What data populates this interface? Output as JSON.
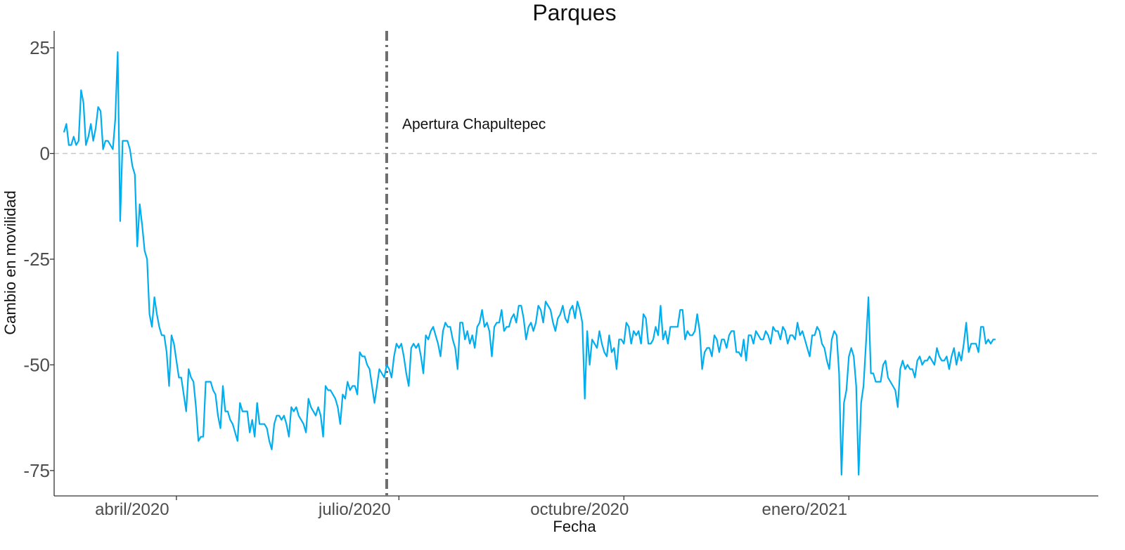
{
  "chart_data": {
    "type": "line",
    "title": "Parques",
    "xlabel": "Fecha",
    "ylabel": "Cambio en movilidad",
    "x_range": [
      "2020-02-11",
      "2021-04-13"
    ],
    "ylim": [
      -81,
      29
    ],
    "y_ticks": [
      25,
      0,
      -25,
      -50,
      -75
    ],
    "y_tick_labels": [
      "25",
      "0",
      "-25",
      "-50",
      "-75"
    ],
    "x_ticks": [
      {
        "date": "2020-04-01",
        "label": "abril/2020"
      },
      {
        "date": "2020-07-01",
        "label": "julio/2020"
      },
      {
        "date": "2020-10-01",
        "label": "octubre/2020"
      },
      {
        "date": "2021-01-01",
        "label": "enero/2021"
      }
    ],
    "grid": false,
    "reference_line": {
      "y": 0,
      "style": "dashed",
      "color": "#c8c8c8"
    },
    "event": {
      "date": "2020-06-26",
      "label": "Apertura Chapultepec",
      "style": "dotdash",
      "color": "#6e6e6e"
    },
    "series": [
      {
        "color": "#00AEEF",
        "start_date": "2020-02-15",
        "values": [
          5,
          7,
          2,
          2,
          4,
          2,
          3,
          15,
          12,
          2,
          4,
          7,
          3,
          6,
          11,
          10,
          1,
          3,
          3,
          2,
          1,
          8,
          24,
          -16,
          3,
          3,
          3,
          1,
          -3,
          -5,
          -22,
          -12,
          -17,
          -23,
          -25,
          -38,
          -41,
          -34,
          -38,
          -41,
          -43,
          -43,
          -47,
          -55,
          -43,
          -45,
          -49,
          -53,
          -53,
          -57,
          -61,
          -51,
          -53,
          -54,
          -60,
          -68,
          -67,
          -67,
          -54,
          -54,
          -54,
          -56,
          -57,
          -62,
          -65,
          -55,
          -61,
          -61,
          -63,
          -64,
          -66,
          -68,
          -59,
          -61,
          -61,
          -61,
          -66,
          -63,
          -67,
          -59,
          -64,
          -64,
          -64,
          -65,
          -68,
          -70,
          -64,
          -62,
          -62,
          -63,
          -62,
          -64,
          -67,
          -60,
          -61,
          -60,
          -62,
          -63,
          -64,
          -66,
          -58,
          -60,
          -61,
          -62,
          -60,
          -62,
          -67,
          -55,
          -56,
          -56,
          -57,
          -58,
          -60,
          -64,
          -57,
          -58,
          -54,
          -56,
          -55,
          -55,
          -57,
          -47,
          -48,
          -48,
          -50,
          -51,
          -55,
          -59,
          -55,
          -51,
          -52,
          -53,
          -50,
          -51,
          -53,
          -48,
          -45,
          -46,
          -45,
          -48,
          -52,
          -55,
          -46,
          -45,
          -46,
          -45,
          -48,
          -52,
          -43,
          -44,
          -42,
          -41,
          -43,
          -45,
          -48,
          -42,
          -40,
          -41,
          -41,
          -44,
          -46,
          -51,
          -40,
          -40,
          -44,
          -42,
          -45,
          -43,
          -46,
          -41,
          -40,
          -37,
          -41,
          -40,
          -42,
          -48,
          -41,
          -40,
          -40,
          -37,
          -42,
          -41,
          -41,
          -39,
          -38,
          -40,
          -36,
          -36,
          -39,
          -44,
          -41,
          -40,
          -42,
          -40,
          -36,
          -37,
          -40,
          -35,
          -36,
          -37,
          -40,
          -42,
          -39,
          -38,
          -36,
          -39,
          -40,
          -37,
          -36,
          -39,
          -35,
          -37,
          -40,
          -58,
          -42,
          -50,
          -44,
          -45,
          -46,
          -42,
          -45,
          -47,
          -48,
          -43,
          -47,
          -46,
          -51,
          -44,
          -44,
          -45,
          -40,
          -41,
          -45,
          -42,
          -43,
          -42,
          -45,
          -38,
          -39,
          -45,
          -45,
          -44,
          -41,
          -43,
          -36,
          -44,
          -42,
          -45,
          -41,
          -41,
          -41,
          -41,
          -37,
          -37,
          -44,
          -42,
          -43,
          -43,
          -42,
          -38,
          -42,
          -51,
          -47,
          -46,
          -46,
          -48,
          -43,
          -44,
          -47,
          -44,
          -44,
          -46,
          -43,
          -42,
          -42,
          -47,
          -47,
          -48,
          -44,
          -49,
          -43,
          -43,
          -45,
          -42,
          -43,
          -44,
          -44,
          -42,
          -43,
          -45,
          -41,
          -42,
          -42,
          -44,
          -41,
          -42,
          -45,
          -43,
          -43,
          -44,
          -40,
          -43,
          -42,
          -44,
          -46,
          -48,
          -43,
          -43,
          -41,
          -42,
          -45,
          -46,
          -49,
          -51,
          -44,
          -42,
          -43,
          -52,
          -76,
          -59,
          -56,
          -48,
          -46,
          -48,
          -55,
          -76,
          -59,
          -55,
          -45,
          -34,
          -52,
          -52,
          -54,
          -54,
          -54,
          -50,
          -49,
          -53,
          -54,
          -55,
          -56,
          -60,
          -51,
          -49,
          -51,
          -50,
          -51,
          -51,
          -53,
          -49,
          -48,
          -50,
          -49,
          -49,
          -48,
          -49,
          -50,
          -46,
          -48,
          -49,
          -49,
          -48,
          -51,
          -48,
          -46,
          -50,
          -47,
          -49,
          -45,
          -40,
          -47,
          -45,
          -45,
          -45,
          -47,
          -41,
          -41,
          -45,
          -44,
          -45,
          -44,
          -44
        ]
      }
    ]
  }
}
